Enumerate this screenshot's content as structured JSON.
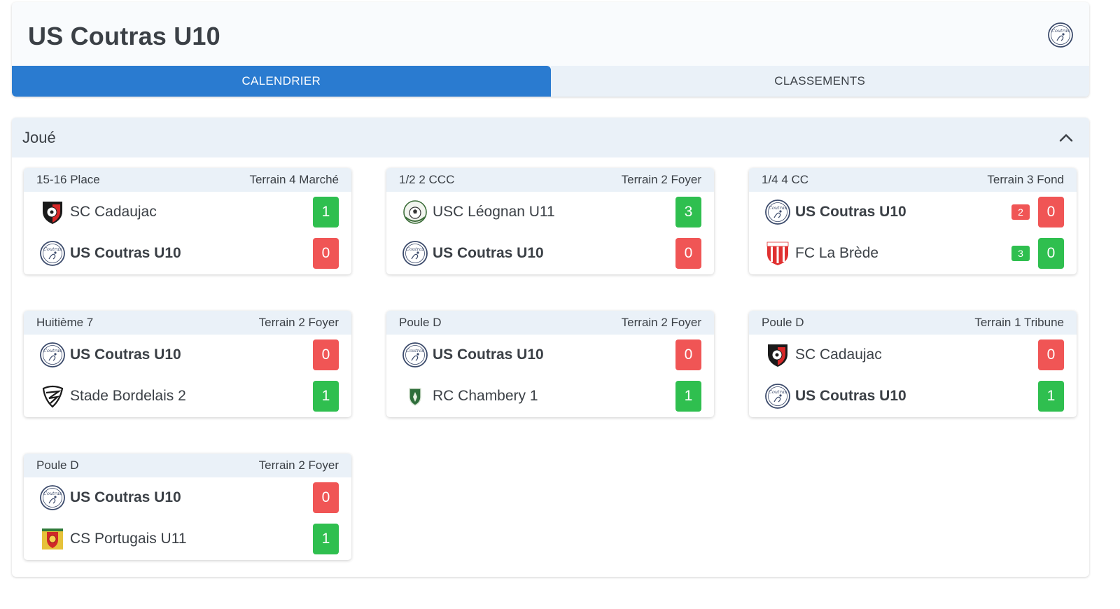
{
  "team": {
    "title": "US Coutras U10"
  },
  "tabs": [
    {
      "label": "CALENDRIER",
      "active": true
    },
    {
      "label": "CLASSEMENTS",
      "active": false
    }
  ],
  "section": {
    "title": "Joué"
  },
  "colors": {
    "accent": "#2a7bd0",
    "win": "#2fbf4f",
    "loss": "#f05555"
  },
  "matches": [
    {
      "round": "15-16 Place",
      "field": "Terrain 4 Marché",
      "home": {
        "name": "SC Cadaujac",
        "score": "1",
        "result": "win",
        "logo": "shield-black-red-icon"
      },
      "away": {
        "name": "US Coutras U10",
        "score": "0",
        "result": "loss",
        "logo": "coutras-crest-icon"
      }
    },
    {
      "round": "1/2 2 CCC",
      "field": "Terrain 2 Foyer",
      "home": {
        "name": "USC Léognan U11",
        "score": "3",
        "result": "win",
        "logo": "green-ball-crest-icon"
      },
      "away": {
        "name": "US Coutras U10",
        "score": "0",
        "result": "loss",
        "logo": "coutras-crest-icon"
      }
    },
    {
      "round": "1/4 4 CC",
      "field": "Terrain 3 Fond",
      "home": {
        "name": "US Coutras U10",
        "score": "0",
        "penalty": "2",
        "result": "loss",
        "logo": "coutras-crest-icon"
      },
      "away": {
        "name": "FC La Brède",
        "score": "0",
        "penalty": "3",
        "result": "win",
        "logo": "red-white-shield-icon"
      }
    },
    {
      "round": "Huitième 7",
      "field": "Terrain 2 Foyer",
      "home": {
        "name": "US Coutras U10",
        "score": "0",
        "result": "loss",
        "logo": "coutras-crest-icon"
      },
      "away": {
        "name": "Stade Bordelais 2",
        "score": "1",
        "result": "win",
        "logo": "black-white-crest-icon"
      }
    },
    {
      "round": "Poule D",
      "field": "Terrain 2 Foyer",
      "home": {
        "name": "US Coutras U10",
        "score": "0",
        "result": "loss",
        "logo": "coutras-crest-icon"
      },
      "away": {
        "name": "RC Chambery 1",
        "score": "1",
        "result": "win",
        "logo": "green-shield-icon"
      }
    },
    {
      "round": "Poule D",
      "field": "Terrain 1 Tribune",
      "home": {
        "name": "SC Cadaujac",
        "score": "0",
        "result": "loss",
        "logo": "shield-black-red-icon"
      },
      "away": {
        "name": "US Coutras U10",
        "score": "1",
        "result": "win",
        "logo": "coutras-crest-icon"
      }
    },
    {
      "round": "Poule D",
      "field": "Terrain 2 Foyer",
      "home": {
        "name": "US Coutras U10",
        "score": "0",
        "result": "loss",
        "logo": "coutras-crest-icon"
      },
      "away": {
        "name": "CS Portugais U11",
        "score": "1",
        "result": "win",
        "logo": "portugal-crest-icon"
      }
    }
  ]
}
